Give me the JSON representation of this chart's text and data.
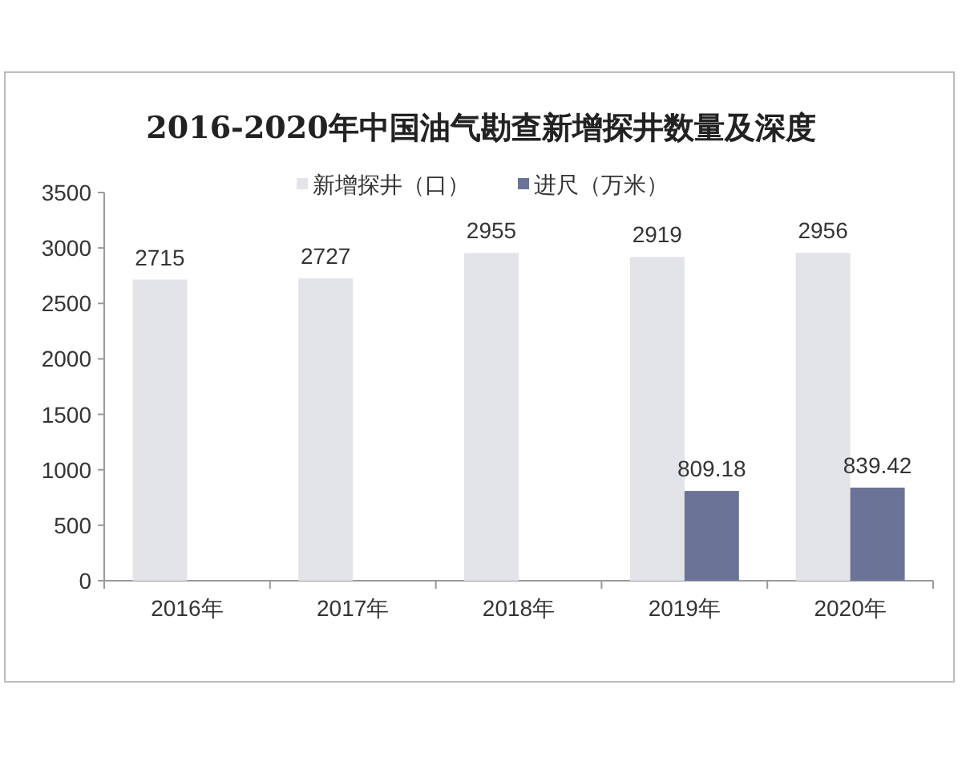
{
  "chart_data": {
    "type": "bar",
    "title": "2016-2020年中国油气勘查新增探井数量及深度",
    "categories": [
      "2016年",
      "2017年",
      "2018年",
      "2019年",
      "2020年"
    ],
    "series": [
      {
        "name": "新增探井（口）",
        "color": "#e3e4ea",
        "values": [
          2715,
          2727,
          2955,
          2919,
          2956
        ]
      },
      {
        "name": "进尺（万米）",
        "color": "#6b7497",
        "values": [
          null,
          null,
          null,
          809.18,
          839.42
        ]
      }
    ],
    "ylim": [
      0,
      3500
    ],
    "yticks": [
      0,
      500,
      1000,
      1500,
      2000,
      2500,
      3000,
      3500
    ],
    "data_labels": true,
    "legend": "top",
    "grid": false
  }
}
